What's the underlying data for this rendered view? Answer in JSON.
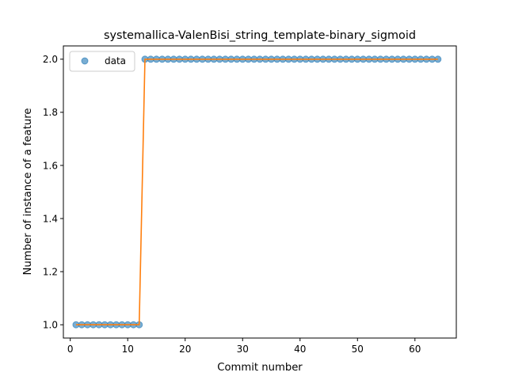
{
  "chart_data": {
    "type": "scatter",
    "title": "systemallica-ValenBisi_string_template-binary_sigmoid",
    "xlabel": "Commit number",
    "ylabel": "Number of instance of a feature",
    "xlim": [
      -1.2,
      67.2
    ],
    "ylim": [
      0.95,
      2.05
    ],
    "x_ticks": [
      0,
      10,
      20,
      30,
      40,
      50,
      60
    ],
    "y_ticks": [
      1.0,
      1.2,
      1.4,
      1.6,
      1.8,
      2.0
    ],
    "x_tick_labels": [
      "0",
      "10",
      "20",
      "30",
      "40",
      "50",
      "60"
    ],
    "y_tick_labels": [
      "1.0",
      "1.2",
      "1.4",
      "1.6",
      "1.8",
      "2.0"
    ],
    "grid": false,
    "legend": {
      "placement": "top-left",
      "entries": [
        "data"
      ]
    },
    "colors": {
      "points": "#1f77b4",
      "fit": "#ff7f0e"
    },
    "series": [
      {
        "name": "data",
        "kind": "points",
        "x": [
          1,
          2,
          3,
          4,
          5,
          6,
          7,
          8,
          9,
          10,
          11,
          12,
          13,
          14,
          15,
          16,
          17,
          18,
          19,
          20,
          21,
          22,
          23,
          24,
          25,
          26,
          27,
          28,
          29,
          30,
          31,
          32,
          33,
          34,
          35,
          36,
          37,
          38,
          39,
          40,
          41,
          42,
          43,
          44,
          45,
          46,
          47,
          48,
          49,
          50,
          51,
          52,
          53,
          54,
          55,
          56,
          57,
          58,
          59,
          60,
          61,
          62,
          63,
          64
        ],
        "y": [
          1,
          1,
          1,
          1,
          1,
          1,
          1,
          1,
          1,
          1,
          1,
          1,
          2,
          2,
          2,
          2,
          2,
          2,
          2,
          2,
          2,
          2,
          2,
          2,
          2,
          2,
          2,
          2,
          2,
          2,
          2,
          2,
          2,
          2,
          2,
          2,
          2,
          2,
          2,
          2,
          2,
          2,
          2,
          2,
          2,
          2,
          2,
          2,
          2,
          2,
          2,
          2,
          2,
          2,
          2,
          2,
          2,
          2,
          2,
          2,
          2,
          2,
          2,
          2
        ]
      },
      {
        "kind": "fit-line",
        "x": [
          1,
          2,
          3,
          4,
          5,
          6,
          7,
          8,
          9,
          10,
          11,
          12,
          13,
          14,
          15,
          16,
          17,
          18,
          19,
          20,
          21,
          22,
          23,
          24,
          25,
          26,
          27,
          28,
          29,
          30,
          31,
          32,
          33,
          34,
          35,
          36,
          37,
          38,
          39,
          40,
          41,
          42,
          43,
          44,
          45,
          46,
          47,
          48,
          49,
          50,
          51,
          52,
          53,
          54,
          55,
          56,
          57,
          58,
          59,
          60,
          61,
          62,
          63,
          64
        ],
        "y": [
          1,
          1,
          1,
          1,
          1,
          1,
          1,
          1,
          1,
          1,
          1,
          1,
          2,
          2,
          2,
          2,
          2,
          2,
          2,
          2,
          2,
          2,
          2,
          2,
          2,
          2,
          2,
          2,
          2,
          2,
          2,
          2,
          2,
          2,
          2,
          2,
          2,
          2,
          2,
          2,
          2,
          2,
          2,
          2,
          2,
          2,
          2,
          2,
          2,
          2,
          2,
          2,
          2,
          2,
          2,
          2,
          2,
          2,
          2,
          2,
          2,
          2,
          2,
          2
        ]
      }
    ]
  }
}
